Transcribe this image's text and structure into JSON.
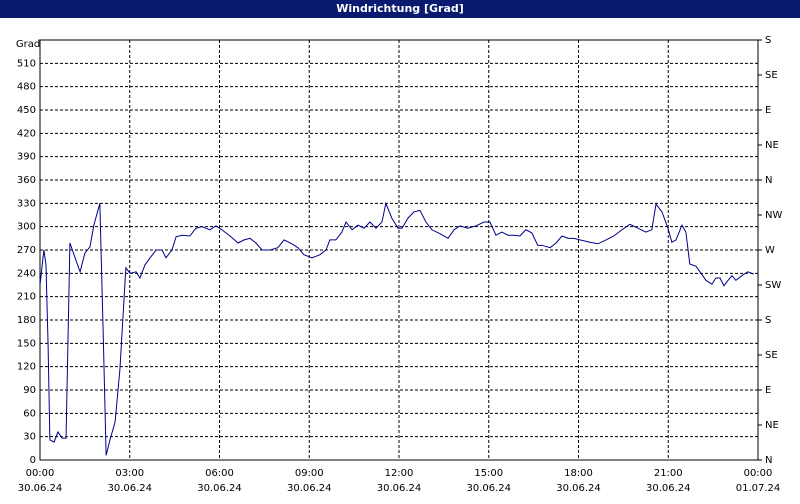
{
  "chart_data": {
    "type": "line",
    "title": "Windrichtung [Grad]",
    "ylabel": "Grad",
    "xlim": [
      0,
      24
    ],
    "ylim": [
      0,
      540
    ],
    "y2lim": [
      0,
      540
    ],
    "grid": true,
    "xticks": [
      {
        "value": 0,
        "label": "00:00",
        "date": "30.06.24"
      },
      {
        "value": 3,
        "label": "03:00",
        "date": "30.06.24"
      },
      {
        "value": 6,
        "label": "06:00",
        "date": "30.06.24"
      },
      {
        "value": 9,
        "label": "09:00",
        "date": "30.06.24"
      },
      {
        "value": 12,
        "label": "12:00",
        "date": "30.06.24"
      },
      {
        "value": 15,
        "label": "15:00",
        "date": "30.06.24"
      },
      {
        "value": 18,
        "label": "18:00",
        "date": "30.06.24"
      },
      {
        "value": 21,
        "label": "21:00",
        "date": "30.06.24"
      },
      {
        "value": 24,
        "label": "00:00",
        "date": "01.07.24"
      }
    ],
    "yticks": [
      0,
      30,
      60,
      90,
      120,
      150,
      180,
      210,
      240,
      270,
      300,
      330,
      360,
      390,
      420,
      450,
      480,
      510
    ],
    "y2ticks": [
      {
        "value": 0,
        "label": "N"
      },
      {
        "value": 45,
        "label": "NE"
      },
      {
        "value": 90,
        "label": "E"
      },
      {
        "value": 135,
        "label": "SE"
      },
      {
        "value": 180,
        "label": "S"
      },
      {
        "value": 225,
        "label": "SW"
      },
      {
        "value": 270,
        "label": "W"
      },
      {
        "value": 315,
        "label": "NW"
      },
      {
        "value": 360,
        "label": "N"
      },
      {
        "value": 405,
        "label": "NE"
      },
      {
        "value": 450,
        "label": "E"
      },
      {
        "value": 495,
        "label": "SE"
      },
      {
        "value": 540,
        "label": "S"
      }
    ],
    "series": [
      {
        "color": "#00008b",
        "x": [
          0,
          0.13,
          0.2,
          0.27,
          0.33,
          0.47,
          0.6,
          0.74,
          0.87,
          1.0,
          1.2,
          1.34,
          1.5,
          1.67,
          1.8,
          2.0,
          2.11,
          2.21,
          2.34,
          2.51,
          2.67,
          2.87,
          3.01,
          3.21,
          3.34,
          3.51,
          3.68,
          3.88,
          4.08,
          4.21,
          4.41,
          4.55,
          4.75,
          5.01,
          5.21,
          5.41,
          5.68,
          5.88,
          6.08,
          6.35,
          6.62,
          6.82,
          7.02,
          7.22,
          7.42,
          7.69,
          7.95,
          8.16,
          8.42,
          8.62,
          8.82,
          9.09,
          9.36,
          9.56,
          9.69,
          9.89,
          10.09,
          10.23,
          10.43,
          10.63,
          10.83,
          11.03,
          11.23,
          11.43,
          11.56,
          11.76,
          11.97,
          12.1,
          12.3,
          12.5,
          12.7,
          12.9,
          13.1,
          13.37,
          13.64,
          13.84,
          14.04,
          14.3,
          14.57,
          14.84,
          15.04,
          15.24,
          15.44,
          15.64,
          15.84,
          16.04,
          16.24,
          16.44,
          16.64,
          16.78,
          17.05,
          17.25,
          17.45,
          17.65,
          17.85,
          18.05,
          18.38,
          18.65,
          18.92,
          19.18,
          19.45,
          19.72,
          19.99,
          20.25,
          20.45,
          20.59,
          20.79,
          20.99,
          21.12,
          21.26,
          21.46,
          21.59,
          21.72,
          21.93,
          22.06,
          22.26,
          22.46,
          22.59,
          22.73,
          22.86,
          23.0,
          23.13,
          23.26,
          23.46,
          23.66,
          23.86
        ],
        "values": [
          225,
          270,
          251,
          148,
          26,
          23,
          36,
          28,
          28,
          279,
          257,
          242,
          266,
          274,
          302,
          330,
          167,
          6,
          26,
          49,
          116,
          247,
          240,
          242,
          234,
          251,
          260,
          270,
          270,
          260,
          270,
          287,
          289,
          288,
          298,
          300,
          296,
          301,
          296,
          288,
          279,
          283,
          285,
          279,
          270,
          270,
          273,
          283,
          278,
          273,
          264,
          260,
          264,
          270,
          283,
          283,
          293,
          306,
          296,
          302,
          298,
          306,
          298,
          306,
          330,
          311,
          298,
          298,
          311,
          319,
          321,
          306,
          296,
          291,
          285,
          296,
          301,
          298,
          301,
          306,
          306,
          289,
          293,
          289,
          289,
          288,
          296,
          292,
          276,
          276,
          273,
          279,
          288,
          285,
          285,
          283,
          280,
          278,
          283,
          288,
          296,
          303,
          298,
          293,
          296,
          329,
          319,
          298,
          280,
          283,
          302,
          293,
          252,
          249,
          242,
          231,
          226,
          234,
          234,
          224,
          231,
          237,
          231,
          237,
          242,
          239
        ]
      }
    ]
  }
}
